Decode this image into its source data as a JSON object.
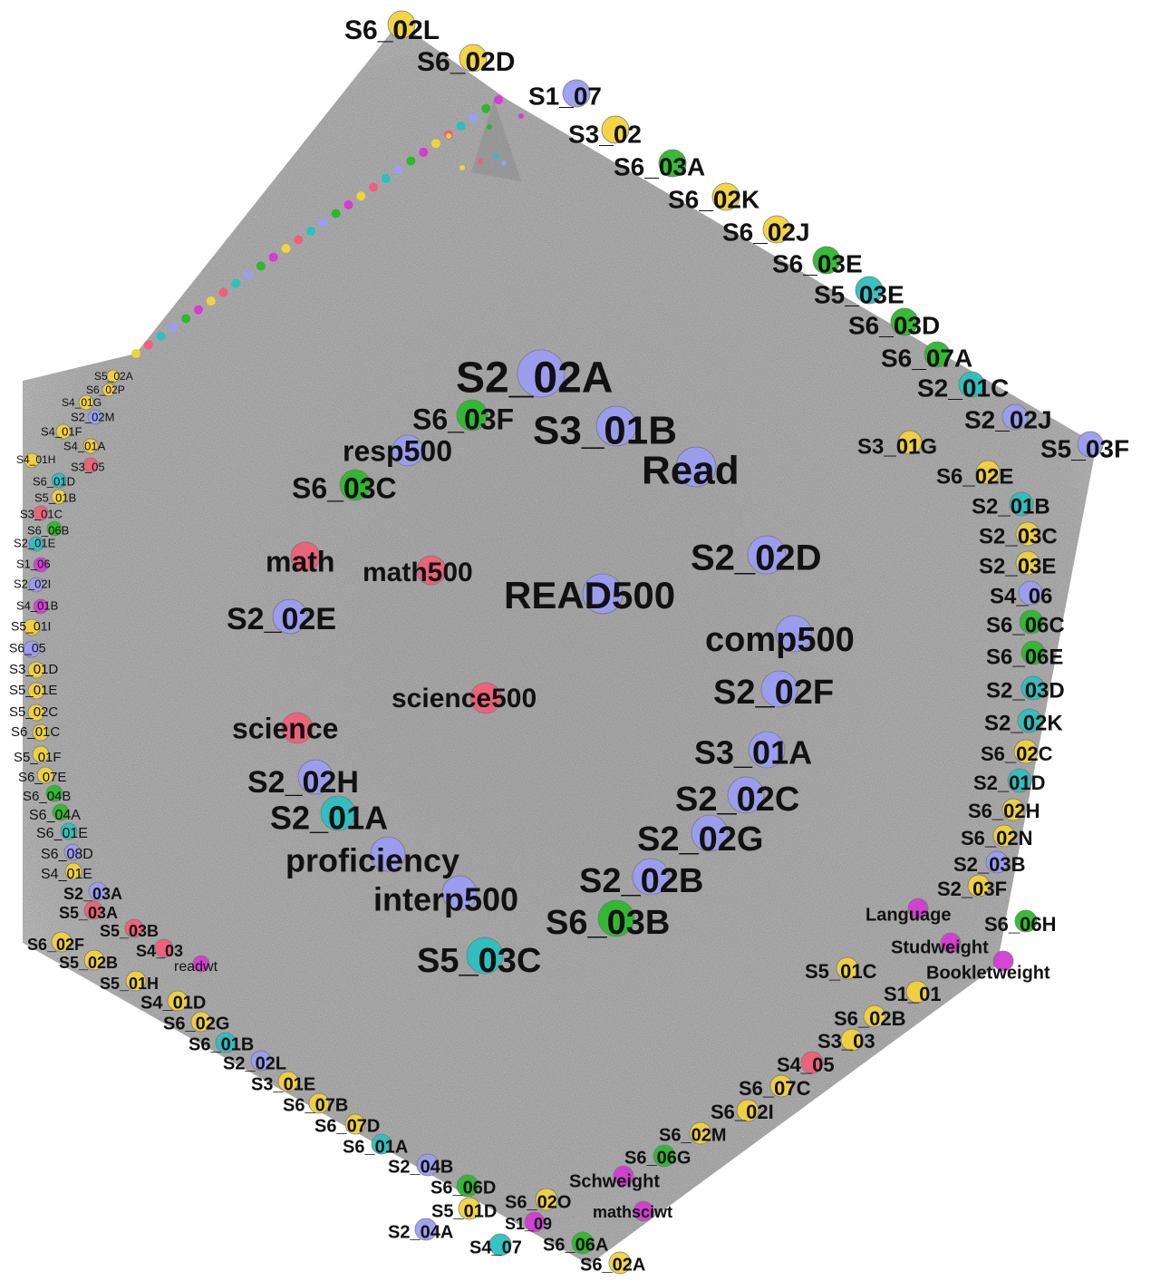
{
  "nodes": [
    {
      "label": "S6_02L",
      "color": "#f2d23c"
    },
    {
      "label": "S6_02D",
      "color": "#f2d23c"
    },
    {
      "label": "S1_07",
      "color": "#9c9cf2"
    },
    {
      "label": "S3_02",
      "color": "#f2d23c"
    },
    {
      "label": "S6_03A",
      "color": "#2cb92c"
    },
    {
      "label": "S6_02K",
      "color": "#f2d23c"
    },
    {
      "label": "S6_02J",
      "color": "#f2d23c"
    },
    {
      "label": "S6_03E",
      "color": "#2cb92c"
    },
    {
      "label": "S5_03E",
      "color": "#2cc0c0"
    },
    {
      "label": "S6_03D",
      "color": "#2cb92c"
    },
    {
      "label": "S6_07A",
      "color": "#2cb92c"
    },
    {
      "label": "S2_01C",
      "color": "#2cc0c0"
    },
    {
      "label": "S2_02J",
      "color": "#9c9cf2"
    },
    {
      "label": "S5_03F",
      "color": "#9c9cf2"
    },
    {
      "label": "S3_01G",
      "color": "#f2d23c"
    },
    {
      "label": "S6_02E",
      "color": "#f2d23c"
    },
    {
      "label": "S2_01B",
      "color": "#2cc0c0"
    },
    {
      "label": "S2_03C",
      "color": "#f2d23c"
    },
    {
      "label": "S2_03E",
      "color": "#f2d23c"
    },
    {
      "label": "S4_06",
      "color": "#9c9cf2"
    },
    {
      "label": "S6_06C",
      "color": "#2cb92c"
    },
    {
      "label": "S6_06E",
      "color": "#2cb92c"
    },
    {
      "label": "S2_03D",
      "color": "#2cc0c0"
    },
    {
      "label": "S2_02K",
      "color": "#2cc0c0"
    },
    {
      "label": "S6_02C",
      "color": "#f2d23c"
    },
    {
      "label": "S2_01D",
      "color": "#2cc0c0"
    },
    {
      "label": "S6_02H",
      "color": "#f2d23c"
    },
    {
      "label": "S6_02N",
      "color": "#f2d23c"
    },
    {
      "label": "S2_03B",
      "color": "#9c9cf2"
    },
    {
      "label": "S2_03F",
      "color": "#f2d23c"
    },
    {
      "label": "S6_06H",
      "color": "#2cb92c"
    },
    {
      "label": "Language",
      "color": "#d43cd4"
    },
    {
      "label": "Studweight",
      "color": "#d43cd4"
    },
    {
      "label": "Bookletweight",
      "color": "#d43cd4"
    },
    {
      "label": "S5_01C",
      "color": "#f2d23c"
    },
    {
      "label": "S1_01",
      "color": "#f2d23c"
    },
    {
      "label": "S6_02B",
      "color": "#f2d23c"
    },
    {
      "label": "S3_03",
      "color": "#f2d23c"
    },
    {
      "label": "S4_05",
      "color": "#ef6079"
    },
    {
      "label": "S6_07C",
      "color": "#f2d23c"
    },
    {
      "label": "S6_02I",
      "color": "#f2d23c"
    },
    {
      "label": "S6_02M",
      "color": "#f2d23c"
    },
    {
      "label": "S6_06G",
      "color": "#2cb92c"
    },
    {
      "label": "Schweight",
      "color": "#d43cd4"
    },
    {
      "label": "mathsciwt",
      "color": "#d43cd4"
    },
    {
      "label": "S6_02O",
      "color": "#f2d23c"
    },
    {
      "label": "S1_09",
      "color": "#d43cd4"
    },
    {
      "label": "S6_06A",
      "color": "#2cb92c"
    },
    {
      "label": "S6_02A",
      "color": "#f2d23c"
    },
    {
      "label": "S4_07",
      "color": "#2cc0c0"
    },
    {
      "label": "S2_04A",
      "color": "#9c9cf2"
    },
    {
      "label": "S5_01D",
      "color": "#f2d23c"
    },
    {
      "label": "S6_06D",
      "color": "#2cb92c"
    },
    {
      "label": "S2_04B",
      "color": "#9c9cf2"
    },
    {
      "label": "S6_01A",
      "color": "#2cc0c0"
    },
    {
      "label": "S6_07D",
      "color": "#f2d23c"
    },
    {
      "label": "S6_07B",
      "color": "#f2d23c"
    },
    {
      "label": "S3_01E",
      "color": "#f2d23c"
    },
    {
      "label": "S2_02L",
      "color": "#9c9cf2"
    },
    {
      "label": "S6_01B",
      "color": "#2cc0c0"
    },
    {
      "label": "S6_02G",
      "color": "#f2d23c"
    },
    {
      "label": "S4_01D",
      "color": "#f2d23c"
    },
    {
      "label": "S5_01H",
      "color": "#f2d23c"
    },
    {
      "label": "S5_02B",
      "color": "#f2d23c"
    },
    {
      "label": "S6_02F",
      "color": "#f2d23c"
    },
    {
      "label": "readwt",
      "color": "#d43cd4"
    },
    {
      "label": "S4_03",
      "color": "#ef6079"
    },
    {
      "label": "S5_03B",
      "color": "#ef6079"
    },
    {
      "label": "S5_03A",
      "color": "#ef6079"
    },
    {
      "label": "S2_03A",
      "color": "#9c9cf2"
    },
    {
      "label": "S4_01E",
      "color": "#f2d23c"
    },
    {
      "label": "S6_08D",
      "color": "#9c9cf2"
    },
    {
      "label": "S6_01E",
      "color": "#2cc0c0"
    },
    {
      "label": "S6_04A",
      "color": "#2cb92c"
    },
    {
      "label": "S6_04B",
      "color": "#2cb92c"
    },
    {
      "label": "S6_07E",
      "color": "#f2d23c"
    },
    {
      "label": "S5_01F",
      "color": "#f2d23c"
    },
    {
      "label": "S6_01C",
      "color": "#f2d23c"
    },
    {
      "label": "S5_02C",
      "color": "#f2d23c"
    },
    {
      "label": "S5_01E",
      "color": "#f2d23c"
    },
    {
      "label": "S3_01D",
      "color": "#f2d23c"
    },
    {
      "label": "S6_05",
      "color": "#9c9cf2"
    },
    {
      "label": "S5_01I",
      "color": "#f2d23c"
    },
    {
      "label": "S4_01B",
      "color": "#d43cd4"
    },
    {
      "label": "S2_02I",
      "color": "#9c9cf2"
    },
    {
      "label": "S1_06",
      "color": "#d43cd4"
    },
    {
      "label": "S2_01E",
      "color": "#2cc0c0"
    },
    {
      "label": "S6_06B",
      "color": "#2cb92c"
    },
    {
      "label": "S3_01C",
      "color": "#ef6079"
    },
    {
      "label": "S5_01B",
      "color": "#f2d23c"
    },
    {
      "label": "S6_01D",
      "color": "#2cc0c0"
    },
    {
      "label": "S3_05",
      "color": "#ef6079"
    },
    {
      "label": "S4_01H",
      "color": "#f2d23c"
    },
    {
      "label": "S4_01A",
      "color": "#f2d23c"
    },
    {
      "label": "S4_01F",
      "color": "#f2d23c"
    },
    {
      "label": "S2_02M",
      "color": "#9c9cf2"
    },
    {
      "label": "S4_01G",
      "color": "#f2d23c"
    },
    {
      "label": "S6_02P",
      "color": "#f2d23c"
    },
    {
      "label": "S5_02A",
      "color": "#f2d23c"
    },
    {
      "label": "S2_02A",
      "color": "#9c9cf2"
    },
    {
      "label": "S6_03F",
      "color": "#2cb92c"
    },
    {
      "label": "S3_01B",
      "color": "#9c9cf2"
    },
    {
      "label": "Read",
      "color": "#9c9cf2"
    },
    {
      "label": "resp500",
      "color": "#9c9cf2"
    },
    {
      "label": "S6_03C",
      "color": "#2cb92c"
    },
    {
      "label": "math",
      "color": "#ef6079"
    },
    {
      "label": "math500",
      "color": "#ef6079"
    },
    {
      "label": "READ500",
      "color": "#9c9cf2"
    },
    {
      "label": "S2_02D",
      "color": "#9c9cf2"
    },
    {
      "label": "comp500",
      "color": "#9c9cf2"
    },
    {
      "label": "S2_02E",
      "color": "#9c9cf2"
    },
    {
      "label": "S2_02F",
      "color": "#9c9cf2"
    },
    {
      "label": "science500",
      "color": "#ef6079"
    },
    {
      "label": "science",
      "color": "#ef6079"
    },
    {
      "label": "S3_01A",
      "color": "#9c9cf2"
    },
    {
      "label": "S2_02H",
      "color": "#9c9cf2"
    },
    {
      "label": "S2_02C",
      "color": "#9c9cf2"
    },
    {
      "label": "S2_01A",
      "color": "#2cc0c0"
    },
    {
      "label": "S2_02G",
      "color": "#9c9cf2"
    },
    {
      "label": "proficiency",
      "color": "#9c9cf2"
    },
    {
      "label": "S2_02B",
      "color": "#9c9cf2"
    },
    {
      "label": "interp500",
      "color": "#9c9cf2"
    },
    {
      "label": "S6_03B",
      "color": "#2cb92c"
    },
    {
      "label": "S5_03C",
      "color": "#2cc0c0"
    }
  ]
}
